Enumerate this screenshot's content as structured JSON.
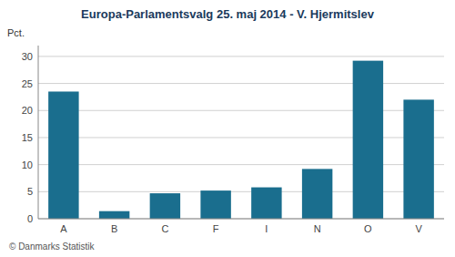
{
  "chart_data": {
    "type": "bar",
    "title": "Europa-Parlamentsvalg 25. maj 2014 - V. Hjermitslev",
    "y_label": "Pct.",
    "categories": [
      "A",
      "B",
      "C",
      "F",
      "I",
      "N",
      "O",
      "V"
    ],
    "values": [
      23.5,
      1.4,
      4.7,
      5.2,
      5.8,
      9.2,
      29.2,
      22.0
    ],
    "color": "#1a6e8e",
    "ylim": [
      0,
      32
    ],
    "yticks": [
      0,
      5,
      10,
      15,
      20,
      25,
      30
    ],
    "grid": true,
    "annotations": [
      "© Danmarks Statistik"
    ]
  }
}
